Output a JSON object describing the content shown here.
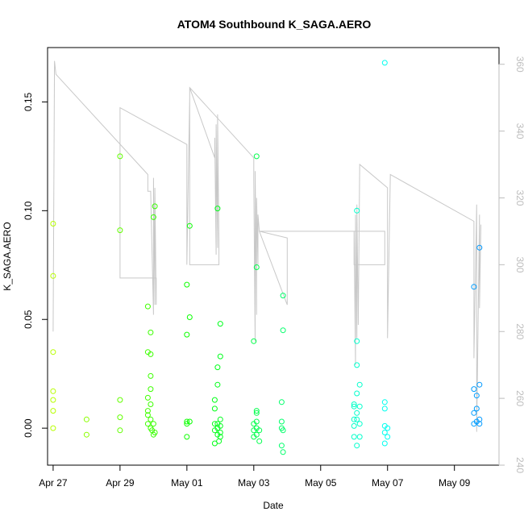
{
  "chart_data": {
    "type": "scatter",
    "title": "ATOM4 Southbound K_SAGA.AERO",
    "xlabel": "Date",
    "ylabel": "K_SAGA.AERO",
    "x_axis": {
      "type": "date",
      "range": [
        "2018-04-26T20:00",
        "2018-05-10T08:00"
      ],
      "ticks": [
        {
          "date": "2018-04-27",
          "label": "Apr 27"
        },
        {
          "date": "2018-04-29",
          "label": "Apr 29"
        },
        {
          "date": "2018-05-01",
          "label": "May 01"
        },
        {
          "date": "2018-05-03",
          "label": "May 03"
        },
        {
          "date": "2018-05-05",
          "label": "May 05"
        },
        {
          "date": "2018-05-07",
          "label": "May 07"
        },
        {
          "date": "2018-05-09",
          "label": "May 09"
        }
      ]
    },
    "y_axis": {
      "range": [
        -0.017,
        0.175
      ],
      "ticks": [
        {
          "value": 0.0,
          "label": "0.00"
        },
        {
          "value": 0.05,
          "label": "0.05"
        },
        {
          "value": 0.1,
          "label": "0.10"
        },
        {
          "value": 0.15,
          "label": "0.15"
        }
      ]
    },
    "y2_axis": {
      "color": "#bdbdbd",
      "range": [
        240,
        365
      ],
      "ticks": [
        {
          "value": 240,
          "label": "240"
        },
        {
          "value": 260,
          "label": "260"
        },
        {
          "value": 280,
          "label": "280"
        },
        {
          "value": 300,
          "label": "300"
        },
        {
          "value": 320,
          "label": "320"
        },
        {
          "value": 340,
          "label": "340"
        },
        {
          "value": 360,
          "label": "360"
        }
      ]
    },
    "grid": false,
    "line_color": "#c8c8c8",
    "point_style": "open circle, colored by date (green to blue)",
    "series": [
      {
        "values": [
          {
            "x": "2018-04-27T00:00",
            "y": 0.094
          },
          {
            "x": "2018-04-27T00:00",
            "y": 0.07
          },
          {
            "x": "2018-04-27T00:00",
            "y": 0.035
          },
          {
            "x": "2018-04-27T00:00",
            "y": 0.017
          },
          {
            "x": "2018-04-27T00:00",
            "y": 0.013
          },
          {
            "x": "2018-04-27T00:00",
            "y": 0.008
          },
          {
            "x": "2018-04-27T00:00",
            "y": 0.0
          },
          {
            "x": "2018-04-28T00:00",
            "y": 0.004
          },
          {
            "x": "2018-04-28T00:00",
            "y": -0.003
          },
          {
            "x": "2018-04-29T00:00",
            "y": 0.125
          },
          {
            "x": "2018-04-29T00:00",
            "y": 0.091
          },
          {
            "x": "2018-04-29T00:00",
            "y": 0.013
          },
          {
            "x": "2018-04-29T00:00",
            "y": 0.005
          },
          {
            "x": "2018-04-29T00:00",
            "y": -0.001
          },
          {
            "x": "2018-04-29T20:00",
            "y": 0.056
          },
          {
            "x": "2018-04-29T20:00",
            "y": 0.035
          },
          {
            "x": "2018-04-29T20:00",
            "y": 0.014
          },
          {
            "x": "2018-04-29T20:00",
            "y": 0.008
          },
          {
            "x": "2018-04-29T20:00",
            "y": 0.006
          },
          {
            "x": "2018-04-29T20:00",
            "y": 0.002
          },
          {
            "x": "2018-04-29T22:00",
            "y": 0.044
          },
          {
            "x": "2018-04-29T22:00",
            "y": 0.034
          },
          {
            "x": "2018-04-29T22:00",
            "y": 0.024
          },
          {
            "x": "2018-04-29T22:00",
            "y": 0.018
          },
          {
            "x": "2018-04-29T22:00",
            "y": 0.011
          },
          {
            "x": "2018-04-29T22:00",
            "y": 0.004
          },
          {
            "x": "2018-04-29T22:00",
            "y": 0.0
          },
          {
            "x": "2018-04-29T23:00",
            "y": -0.001
          },
          {
            "x": "2018-04-30T00:00",
            "y": 0.097
          },
          {
            "x": "2018-04-30T00:00",
            "y": 0.002
          },
          {
            "x": "2018-04-30T00:00",
            "y": -0.003
          },
          {
            "x": "2018-04-30T01:00",
            "y": 0.102
          },
          {
            "x": "2018-04-30T01:00",
            "y": -0.002
          },
          {
            "x": "2018-05-01T00:00",
            "y": 0.066
          },
          {
            "x": "2018-05-01T00:00",
            "y": 0.043
          },
          {
            "x": "2018-05-01T00:00",
            "y": 0.003
          },
          {
            "x": "2018-05-01T00:00",
            "y": 0.002
          },
          {
            "x": "2018-05-01T00:00",
            "y": -0.004
          },
          {
            "x": "2018-05-01T02:00",
            "y": 0.093
          },
          {
            "x": "2018-05-01T02:00",
            "y": 0.051
          },
          {
            "x": "2018-05-01T02:00",
            "y": 0.003
          },
          {
            "x": "2018-05-01T20:00",
            "y": 0.013
          },
          {
            "x": "2018-05-01T20:00",
            "y": 0.009
          },
          {
            "x": "2018-05-01T20:00",
            "y": 0.002
          },
          {
            "x": "2018-05-01T20:00",
            "y": -0.001
          },
          {
            "x": "2018-05-01T20:00",
            "y": -0.007
          },
          {
            "x": "2018-05-01T22:00",
            "y": 0.101
          },
          {
            "x": "2018-05-01T22:00",
            "y": 0.028
          },
          {
            "x": "2018-05-01T22:00",
            "y": 0.02
          },
          {
            "x": "2018-05-01T22:00",
            "y": 0.002
          },
          {
            "x": "2018-05-01T22:00",
            "y": 0.0
          },
          {
            "x": "2018-05-01T22:00",
            "y": -0.003
          },
          {
            "x": "2018-05-01T23:00",
            "y": -0.006
          },
          {
            "x": "2018-05-02T00:00",
            "y": 0.048
          },
          {
            "x": "2018-05-02T00:00",
            "y": 0.033
          },
          {
            "x": "2018-05-02T00:00",
            "y": 0.004
          },
          {
            "x": "2018-05-02T00:00",
            "y": 0.001
          },
          {
            "x": "2018-05-02T00:00",
            "y": -0.002
          },
          {
            "x": "2018-05-02T00:00",
            "y": -0.004
          },
          {
            "x": "2018-05-03T00:00",
            "y": 0.04
          },
          {
            "x": "2018-05-03T00:00",
            "y": 0.002
          },
          {
            "x": "2018-05-03T00:00",
            "y": -0.001
          },
          {
            "x": "2018-05-03T00:00",
            "y": -0.004
          },
          {
            "x": "2018-05-03T02:00",
            "y": 0.125
          },
          {
            "x": "2018-05-03T02:00",
            "y": 0.074
          },
          {
            "x": "2018-05-03T02:00",
            "y": 0.008
          },
          {
            "x": "2018-05-03T02:00",
            "y": 0.007
          },
          {
            "x": "2018-05-03T02:00",
            "y": 0.003
          },
          {
            "x": "2018-05-03T02:00",
            "y": 0.0
          },
          {
            "x": "2018-05-03T02:00",
            "y": -0.003
          },
          {
            "x": "2018-05-03T04:00",
            "y": -0.006
          },
          {
            "x": "2018-05-03T04:00",
            "y": -0.001
          },
          {
            "x": "2018-05-03T20:00",
            "y": 0.012
          },
          {
            "x": "2018-05-03T20:00",
            "y": 0.003
          },
          {
            "x": "2018-05-03T20:00",
            "y": 0.0
          },
          {
            "x": "2018-05-03T20:00",
            "y": -0.008
          },
          {
            "x": "2018-05-03T21:00",
            "y": 0.061
          },
          {
            "x": "2018-05-03T21:00",
            "y": 0.045
          },
          {
            "x": "2018-05-03T21:00",
            "y": -0.001
          },
          {
            "x": "2018-05-03T21:00",
            "y": -0.011
          },
          {
            "x": "2018-05-06T00:00",
            "y": 0.011
          },
          {
            "x": "2018-05-06T00:00",
            "y": 0.01
          },
          {
            "x": "2018-05-06T00:00",
            "y": 0.004
          },
          {
            "x": "2018-05-06T00:00",
            "y": 0.001
          },
          {
            "x": "2018-05-06T00:00",
            "y": -0.004
          },
          {
            "x": "2018-05-06T02:00",
            "y": 0.1
          },
          {
            "x": "2018-05-06T02:00",
            "y": 0.04
          },
          {
            "x": "2018-05-06T02:00",
            "y": 0.029
          },
          {
            "x": "2018-05-06T02:00",
            "y": 0.016
          },
          {
            "x": "2018-05-06T02:00",
            "y": 0.007
          },
          {
            "x": "2018-05-06T02:00",
            "y": 0.004
          },
          {
            "x": "2018-05-06T02:00",
            "y": -0.008
          },
          {
            "x": "2018-05-06T04:00",
            "y": 0.02
          },
          {
            "x": "2018-05-06T04:00",
            "y": 0.01
          },
          {
            "x": "2018-05-06T04:00",
            "y": 0.002
          },
          {
            "x": "2018-05-06T04:00",
            "y": -0.004
          },
          {
            "x": "2018-05-06T22:00",
            "y": 0.168
          },
          {
            "x": "2018-05-06T22:00",
            "y": 0.012
          },
          {
            "x": "2018-05-06T22:00",
            "y": 0.009
          },
          {
            "x": "2018-05-06T22:00",
            "y": 0.001
          },
          {
            "x": "2018-05-06T22:00",
            "y": -0.002
          },
          {
            "x": "2018-05-06T22:00",
            "y": -0.007
          },
          {
            "x": "2018-05-07T00:00",
            "y": 0.0
          },
          {
            "x": "2018-05-07T00:00",
            "y": -0.004
          },
          {
            "x": "2018-05-09T14:00",
            "y": 0.065
          },
          {
            "x": "2018-05-09T14:00",
            "y": 0.018
          },
          {
            "x": "2018-05-09T14:00",
            "y": 0.007
          },
          {
            "x": "2018-05-09T14:00",
            "y": 0.002
          },
          {
            "x": "2018-05-09T16:00",
            "y": 0.015
          },
          {
            "x": "2018-05-09T16:00",
            "y": 0.009
          },
          {
            "x": "2018-05-09T16:00",
            "y": 0.003
          },
          {
            "x": "2018-05-09T18:00",
            "y": 0.083
          },
          {
            "x": "2018-05-09T18:00",
            "y": 0.02
          },
          {
            "x": "2018-05-09T18:00",
            "y": 0.004
          },
          {
            "x": "2018-05-09T18:00",
            "y": 0.002
          }
        ]
      },
      {
        "axis": "right",
        "line": [
          [
            "2018-04-27T00:00",
            280
          ],
          [
            "2018-04-27T01:00",
            361
          ],
          [
            "2018-04-27T02:00",
            357
          ],
          [
            "2018-04-29T20:00",
            327
          ],
          [
            "2018-04-29T20:00",
            322
          ],
          [
            "2018-04-29T22:00",
            322
          ],
          [
            "2018-04-30T00:00",
            285
          ],
          [
            "2018-04-30T00:00",
            326
          ],
          [
            "2018-04-30T01:00",
            288
          ],
          [
            "2018-04-30T01:00",
            323
          ],
          [
            "2018-04-30T02:00",
            288
          ],
          [
            "2018-04-30T02:00",
            296
          ],
          [
            "2018-04-29T00:00",
            296
          ],
          [
            "2018-04-29T00:00",
            347
          ],
          [
            "2018-05-01T00:00",
            336
          ],
          [
            "2018-05-01T00:00",
            300
          ],
          [
            "2018-05-01T02:00",
            350
          ],
          [
            "2018-05-01T02:00",
            300
          ],
          [
            "2018-05-01T02:00",
            353
          ],
          [
            "2018-05-01T20:00",
            332
          ],
          [
            "2018-05-01T20:00",
            338
          ],
          [
            "2018-05-01T21:00",
            303
          ],
          [
            "2018-05-01T21:00",
            342
          ],
          [
            "2018-05-01T22:00",
            305
          ],
          [
            "2018-05-01T22:00",
            345
          ],
          [
            "2018-05-01T23:00",
            307
          ],
          [
            "2018-05-01T23:00",
            300
          ],
          [
            "2018-05-01T02:00",
            300
          ],
          [
            "2018-05-01T02:00",
            353
          ],
          [
            "2018-05-03T00:00",
            332
          ],
          [
            "2018-05-03T00:00",
            325
          ],
          [
            "2018-05-03T01:00",
            277
          ],
          [
            "2018-05-03T01:00",
            328
          ],
          [
            "2018-05-03T02:00",
            285
          ],
          [
            "2018-05-03T02:00",
            320
          ],
          [
            "2018-05-03T03:00",
            300
          ],
          [
            "2018-05-03T03:00",
            315
          ],
          [
            "2018-05-03T04:00",
            310
          ],
          [
            "2018-05-04T00:00",
            308
          ],
          [
            "2018-05-04T00:00",
            288
          ],
          [
            "2018-05-03T04:00",
            310
          ],
          [
            "2018-05-06T22:00",
            310
          ],
          [
            "2018-05-06T22:00",
            300
          ],
          [
            "2018-05-06T00:00",
            300
          ],
          [
            "2018-05-06T00:00",
            310
          ],
          [
            "2018-05-06T01:00",
            270
          ],
          [
            "2018-05-06T01:00",
            315
          ],
          [
            "2018-05-06T02:00",
            278
          ],
          [
            "2018-05-06T02:00",
            318
          ],
          [
            "2018-05-06T03:00",
            282
          ],
          [
            "2018-05-06T04:00",
            330
          ],
          [
            "2018-05-07T00:00",
            323
          ],
          [
            "2018-05-07T00:00",
            278
          ],
          [
            "2018-05-07T02:00",
            327
          ],
          [
            "2018-05-09T14:00",
            313
          ],
          [
            "2018-05-09T14:00",
            272
          ],
          [
            "2018-05-09T16:00",
            318
          ],
          [
            "2018-05-09T16:00",
            250
          ],
          [
            "2018-05-09T18:00",
            315
          ],
          [
            "2018-05-09T18:00",
            287
          ],
          [
            "2018-05-09T19:00",
            312
          ]
        ]
      }
    ]
  }
}
